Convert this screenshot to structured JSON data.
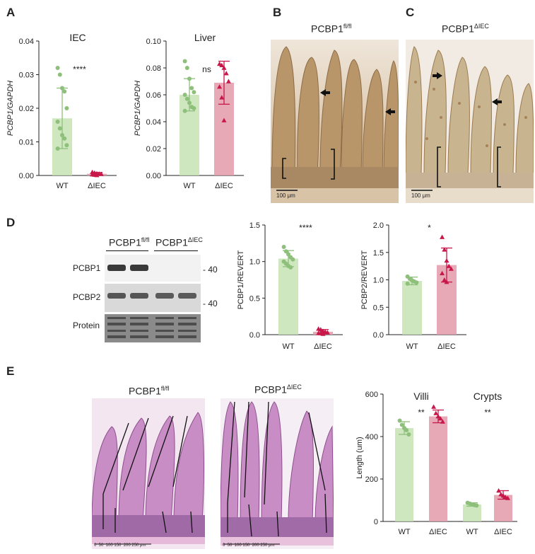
{
  "panels": {
    "A": "A",
    "B": "B",
    "C": "C",
    "D": "D",
    "E": "E"
  },
  "colors": {
    "wt": "#8ec07c",
    "wt_fill": "#c6e3b4",
    "ko": "#c8174a",
    "ko_fill": "#e39aa9",
    "tissue_brown": "#b9966a",
    "tissue_pink": "#c88dc4"
  },
  "micrographs": {
    "B_title_base": "PCBP1",
    "B_title_sup": "fl/fl",
    "C_title_base": "PCBP1",
    "C_title_sup": "ΔIEC",
    "scale_label": "100 μm"
  },
  "western": {
    "group1_base": "PCBP1",
    "group1_sup": "fl/fl",
    "group2_base": "PCBP1",
    "group2_sup": "ΔIEC",
    "rows": [
      "PCBP1",
      "PCBP2",
      "Protein"
    ],
    "mw1": "- 40",
    "mw2": "- 40"
  },
  "he": {
    "left_base": "PCBP1",
    "left_sup": "fl/fl",
    "right_base": "PCBP1",
    "right_sup": "ΔIEC",
    "scale_ticks": "0  50  100 150  200 250 μm"
  },
  "chart_data": [
    {
      "id": "A1",
      "type": "bar",
      "title": "IEC",
      "ylabel": "PCBP1/GAPDH",
      "ylim": [
        0,
        0.04
      ],
      "yticks": [
        "0.00",
        "0.01",
        "0.02",
        "0.03",
        "0.04"
      ],
      "categories": [
        "WT",
        "ΔIEC"
      ],
      "values": [
        0.017,
        0.0005
      ],
      "sd": [
        0.009,
        0.0004
      ],
      "significance": "****",
      "points": [
        [
          0.032,
          0.03,
          0.026,
          0.025,
          0.02,
          0.016,
          0.014,
          0.012,
          0.011,
          0.009,
          0.008
        ],
        [
          0.001,
          0.0008,
          0.0006,
          0.0005,
          0.0004,
          0.0003,
          0.0002,
          0.0001
        ]
      ]
    },
    {
      "id": "A2",
      "type": "bar",
      "title": "Liver",
      "ylabel": "PCBP1/GAPDH",
      "ylim": [
        0,
        0.1
      ],
      "yticks": [
        "0.00",
        "0.02",
        "0.04",
        "0.06",
        "0.08",
        "0.10"
      ],
      "categories": [
        "WT",
        "ΔIEC"
      ],
      "values": [
        0.06,
        0.069
      ],
      "sd": [
        0.012,
        0.016
      ],
      "significance": "ns",
      "points": [
        [
          0.085,
          0.08,
          0.072,
          0.065,
          0.062,
          0.06,
          0.057,
          0.054,
          0.051,
          0.05,
          0.048
        ],
        [
          0.083,
          0.082,
          0.08,
          0.076,
          0.07,
          0.066,
          0.058,
          0.041
        ]
      ]
    },
    {
      "id": "D1",
      "type": "bar",
      "ylabel": "PCBP1/REVERT",
      "ylim": [
        0,
        1.5
      ],
      "yticks": [
        "0.0",
        "0.5",
        "1.0",
        "1.5"
      ],
      "categories": [
        "WT",
        "ΔIEC"
      ],
      "values": [
        1.04,
        0.04
      ],
      "sd": [
        0.11,
        0.03
      ],
      "significance": "****",
      "points": [
        [
          1.2,
          1.14,
          1.1,
          1.06,
          1.03,
          1.0,
          0.97,
          0.94,
          0.92
        ],
        [
          0.08,
          0.07,
          0.05,
          0.04,
          0.03,
          0.02,
          0.02,
          0.01
        ]
      ]
    },
    {
      "id": "D2",
      "type": "bar",
      "ylabel": "PCBP2/REVERT",
      "ylim": [
        0,
        2.0
      ],
      "yticks": [
        "0.0",
        "0.5",
        "1.0",
        "1.5",
        "2.0"
      ],
      "categories": [
        "WT",
        "ΔIEC"
      ],
      "values": [
        0.98,
        1.27
      ],
      "sd": [
        0.07,
        0.31
      ],
      "significance": "*",
      "points": [
        [
          1.06,
          1.02,
          0.99,
          0.97,
          0.95,
          0.93
        ],
        [
          1.78,
          1.55,
          1.35,
          1.25,
          1.2,
          1.12,
          1.0,
          0.96
        ]
      ]
    },
    {
      "id": "E1",
      "type": "bar",
      "ylabel": "Length (um)",
      "ylim": [
        0,
        600
      ],
      "yticks": [
        "0",
        "200",
        "400",
        "600"
      ],
      "group_labels": [
        "Villi",
        "Crypts"
      ],
      "categories": [
        "WT",
        "ΔIEC",
        "WT",
        "ΔIEC"
      ],
      "values": [
        440,
        495,
        80,
        125
      ],
      "sd": [
        30,
        30,
        8,
        20
      ],
      "significance": [
        "**",
        "**"
      ],
      "points": [
        [
          475,
          455,
          440,
          430,
          410
        ],
        [
          540,
          510,
          495,
          485,
          470
        ],
        [
          88,
          84,
          80,
          77,
          75
        ],
        [
          145,
          128,
          122,
          115,
          110
        ]
      ]
    }
  ]
}
